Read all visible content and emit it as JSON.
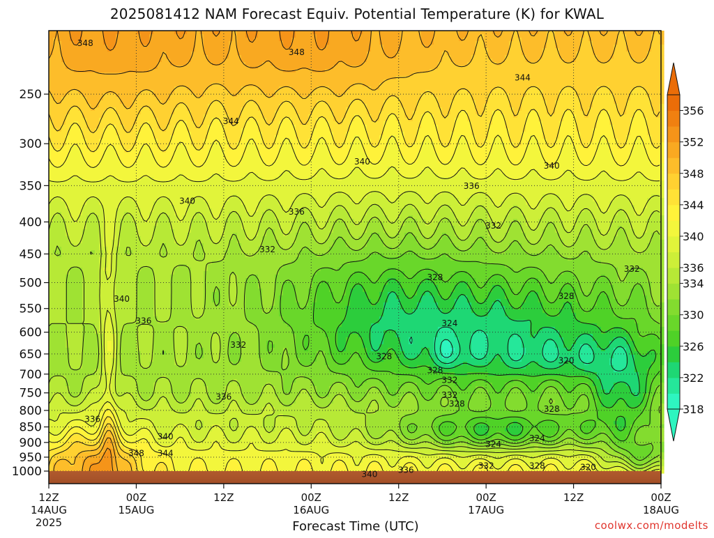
{
  "chart_data": {
    "type": "contour",
    "title": "2025081412 NAM Forecast Equiv. Potential Temperature (K) for KWAL",
    "xlabel": "Forecast Time (UTC)",
    "ylabel": "",
    "credit": "coolwx.com/modelts",
    "y_scale": "log-pressure",
    "y_range_hPa": [
      1000,
      200
    ],
    "y_ticks": [
      250,
      300,
      350,
      400,
      450,
      500,
      550,
      600,
      650,
      700,
      750,
      800,
      850,
      900,
      950,
      1000
    ],
    "x_range_hours": [
      0,
      84
    ],
    "x_ticks": [
      {
        "hour": 0,
        "lines": [
          "12Z",
          "14AUG",
          "2025"
        ]
      },
      {
        "hour": 12,
        "lines": [
          "00Z",
          "15AUG"
        ]
      },
      {
        "hour": 24,
        "lines": [
          "12Z"
        ]
      },
      {
        "hour": 36,
        "lines": [
          "00Z",
          "16AUG"
        ]
      },
      {
        "hour": 48,
        "lines": [
          "12Z"
        ]
      },
      {
        "hour": 60,
        "lines": [
          "00Z",
          "17AUG"
        ]
      },
      {
        "hour": 72,
        "lines": [
          "12Z"
        ]
      },
      {
        "hour": 84,
        "lines": [
          "00Z",
          "18AUG"
        ]
      }
    ],
    "grid": true,
    "colorbar": {
      "position": "right",
      "unit": "K",
      "levels": [
        318,
        320,
        322,
        324,
        326,
        328,
        330,
        332,
        334,
        336,
        338,
        340,
        342,
        344,
        346,
        348,
        350,
        352,
        354,
        356
      ],
      "tick_labels": [
        318,
        322,
        326,
        330,
        334,
        336,
        340,
        344,
        348,
        352,
        356
      ],
      "colors": [
        "#2ef5c0",
        "#25e79a",
        "#1ed774",
        "#2ccd3c",
        "#4fd227",
        "#69d72a",
        "#83dc2f",
        "#9fe233",
        "#b7e936",
        "#cdef38",
        "#e1f43a",
        "#f3f63c",
        "#fff23a",
        "#ffe236",
        "#ffd131",
        "#fdbd2a",
        "#f9a921",
        "#f59419",
        "#f08010",
        "#eb6d08"
      ],
      "extend": "both"
    },
    "contour_labels": [
      {
        "hour": 5,
        "p": 207,
        "v": 348
      },
      {
        "hour": 34,
        "p": 214,
        "v": 348
      },
      {
        "hour": 65,
        "p": 235,
        "v": 344
      },
      {
        "hour": 25,
        "p": 276,
        "v": 344
      },
      {
        "hour": 43,
        "p": 320,
        "v": 340
      },
      {
        "hour": 69,
        "p": 325,
        "v": 340
      },
      {
        "hour": 19,
        "p": 370,
        "v": 340
      },
      {
        "hour": 58,
        "p": 350,
        "v": 336
      },
      {
        "hour": 34,
        "p": 385,
        "v": 336
      },
      {
        "hour": 61,
        "p": 405,
        "v": 332
      },
      {
        "hour": 30,
        "p": 442,
        "v": 332
      },
      {
        "hour": 53,
        "p": 490,
        "v": 328
      },
      {
        "hour": 80,
        "p": 475,
        "v": 332
      },
      {
        "hour": 71,
        "p": 525,
        "v": 328
      },
      {
        "hour": 10,
        "p": 530,
        "v": 340
      },
      {
        "hour": 13,
        "p": 575,
        "v": 336
      },
      {
        "hour": 55,
        "p": 580,
        "v": 324
      },
      {
        "hour": 26,
        "p": 628,
        "v": 332
      },
      {
        "hour": 46,
        "p": 655,
        "v": 328
      },
      {
        "hour": 71,
        "p": 665,
        "v": 320
      },
      {
        "hour": 53,
        "p": 690,
        "v": 328
      },
      {
        "hour": 55,
        "p": 715,
        "v": 332
      },
      {
        "hour": 55,
        "p": 755,
        "v": 332
      },
      {
        "hour": 56,
        "p": 780,
        "v": 328
      },
      {
        "hour": 69,
        "p": 795,
        "v": 328
      },
      {
        "hour": 24,
        "p": 760,
        "v": 336
      },
      {
        "hour": 6,
        "p": 825,
        "v": 336
      },
      {
        "hour": 16,
        "p": 880,
        "v": 340
      },
      {
        "hour": 61,
        "p": 905,
        "v": 324
      },
      {
        "hour": 67,
        "p": 885,
        "v": 324
      },
      {
        "hour": 12,
        "p": 935,
        "v": 348
      },
      {
        "hour": 16,
        "p": 935,
        "v": 344
      },
      {
        "hour": 60,
        "p": 980,
        "v": 332
      },
      {
        "hour": 67,
        "p": 980,
        "v": 328
      },
      {
        "hour": 74,
        "p": 985,
        "v": 320
      },
      {
        "hour": 49,
        "p": 995,
        "v": 336
      },
      {
        "hour": 44,
        "p": 1010,
        "v": 340
      }
    ]
  }
}
